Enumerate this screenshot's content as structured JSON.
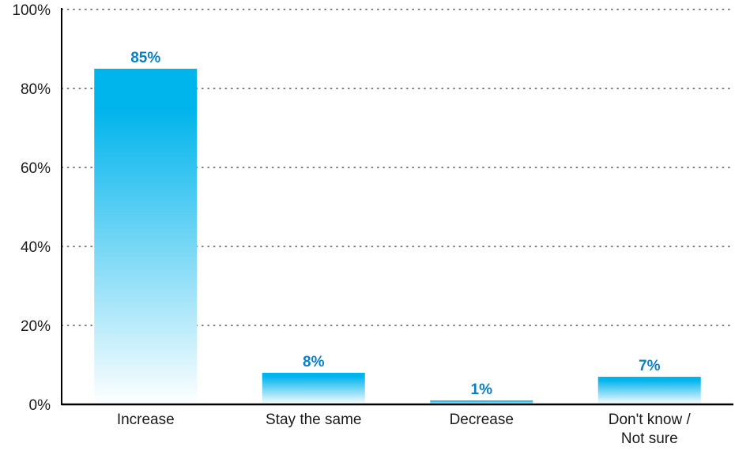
{
  "chart_data": {
    "type": "bar",
    "categories": [
      "Increase",
      "Stay the same",
      "Decrease",
      "Don't know / Not sure"
    ],
    "values": [
      85,
      8,
      1,
      7
    ],
    "value_labels": [
      "85%",
      "8%",
      "1%",
      "7%"
    ],
    "ylim": [
      0,
      100
    ],
    "yticks": [
      0,
      20,
      40,
      60,
      80,
      100
    ],
    "ytick_labels": [
      "0%",
      "20%",
      "40%",
      "60%",
      "80%",
      "100%"
    ],
    "grid": true,
    "colors": {
      "bar_top": "#00b4ec",
      "bar_bottom": "#ffffff",
      "value_label": "#0a7fc2",
      "axis": "#000000",
      "grid": "#555555",
      "text": "#1a1a1a"
    }
  }
}
